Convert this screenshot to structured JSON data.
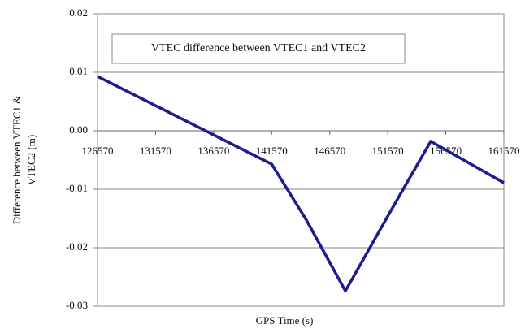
{
  "chart_data": {
    "type": "line",
    "title": "VTEC difference between VTEC1 and VTEC2",
    "xlabel": "GPS Time (s)",
    "ylabel": [
      "Difference between VTEC1 &",
      "VTEC2 (m)"
    ],
    "x": [
      126570,
      131570,
      136570,
      141570,
      144570,
      147920,
      151570,
      155270,
      161570
    ],
    "series": [
      {
        "name": "VTEC difference between VTEC1 and VTEC2",
        "color": "#1c1c8f",
        "values": [
          0.0093,
          0.0043,
          -0.0007,
          -0.0057,
          -0.0153,
          -0.0274,
          -0.0146,
          -0.0018,
          -0.0089
        ]
      }
    ],
    "xlim": [
      126570,
      161570
    ],
    "xticks": [
      126570,
      131570,
      136570,
      141570,
      146570,
      151570,
      156570,
      161570
    ],
    "ylim": [
      -0.03,
      0.02
    ],
    "yticks": [
      0.02,
      0.01,
      {
        "value": 0,
        "label": "0.00"
      },
      -0.01,
      -0.02,
      -0.03
    ],
    "grid": true
  }
}
